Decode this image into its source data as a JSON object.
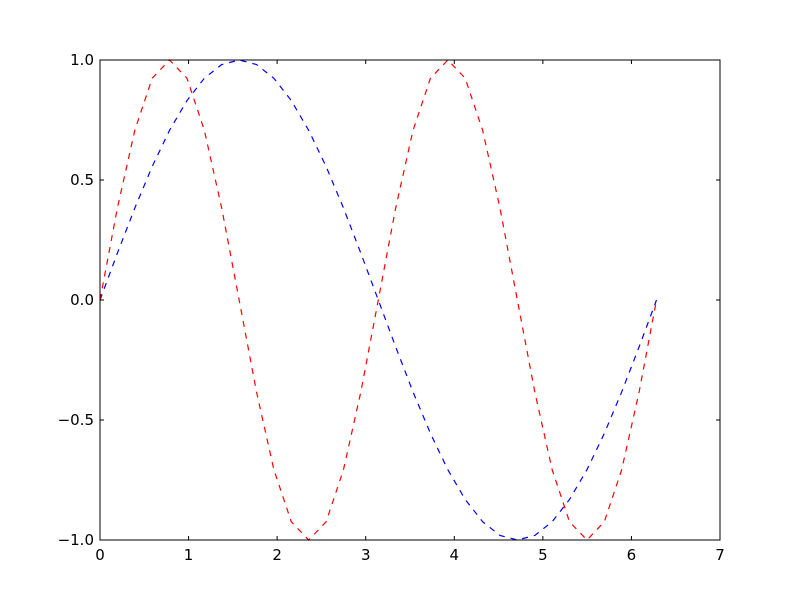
{
  "chart_data": {
    "type": "line",
    "title": "",
    "xlabel": "",
    "ylabel": "",
    "xlim": [
      0,
      7
    ],
    "ylim": [
      -1,
      1
    ],
    "grid": false,
    "xticks": [
      0,
      1,
      2,
      3,
      4,
      5,
      6,
      7
    ],
    "xtick_labels": [
      "0",
      "1",
      "2",
      "3",
      "4",
      "5",
      "6",
      "7"
    ],
    "yticks": [
      -1,
      -0.5,
      0,
      0.5,
      1
    ],
    "ytick_labels": [
      "−1.0",
      "−0.5",
      "0.0",
      "0.5",
      "1.0"
    ],
    "x": [
      0,
      0.196,
      0.393,
      0.589,
      0.785,
      0.982,
      1.178,
      1.374,
      1.571,
      1.767,
      1.963,
      2.16,
      2.356,
      2.553,
      2.749,
      2.945,
      3.142,
      3.338,
      3.534,
      3.731,
      3.927,
      4.123,
      4.32,
      4.516,
      4.712,
      4.909,
      5.105,
      5.301,
      5.498,
      5.694,
      5.89,
      6.087,
      6.283
    ],
    "series": [
      {
        "color": "#0000ff",
        "linestyle": "dashed",
        "values": [
          0,
          0.195,
          0.383,
          0.556,
          0.707,
          0.831,
          0.924,
          0.981,
          1,
          0.981,
          0.924,
          0.831,
          0.707,
          0.556,
          0.383,
          0.195,
          0,
          -0.195,
          -0.383,
          -0.556,
          -0.707,
          -0.831,
          -0.924,
          -0.981,
          -1,
          -0.981,
          -0.924,
          -0.831,
          -0.707,
          -0.556,
          -0.383,
          -0.195,
          0
        ]
      },
      {
        "color": "#ff0000",
        "linestyle": "dashed",
        "values": [
          0,
          0.383,
          0.707,
          0.924,
          1,
          0.924,
          0.707,
          0.383,
          0,
          -0.383,
          -0.707,
          -0.924,
          -1,
          -0.924,
          -0.707,
          -0.383,
          0,
          0.383,
          0.707,
          0.924,
          1,
          0.924,
          0.707,
          0.383,
          0,
          -0.383,
          -0.707,
          -0.924,
          -1,
          -0.924,
          -0.707,
          -0.383,
          0
        ]
      }
    ]
  }
}
